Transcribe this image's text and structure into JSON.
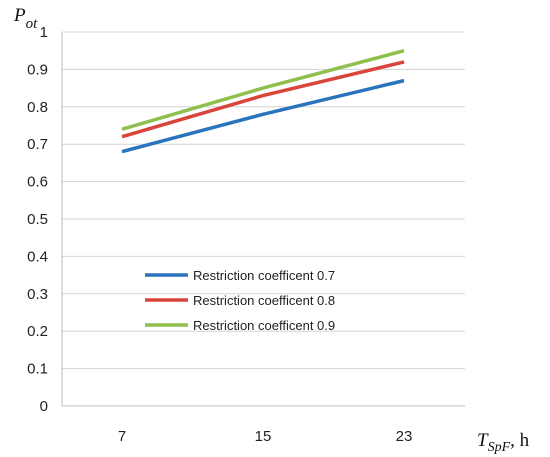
{
  "chart_data": {
    "type": "line",
    "x": [
      7,
      15,
      23
    ],
    "xticks": [
      "7",
      "15",
      "23"
    ],
    "yticks": [
      "0",
      "0.1",
      "0.2",
      "0.3",
      "0.4",
      "0.5",
      "0.6",
      "0.7",
      "0.8",
      "0.9",
      "1"
    ],
    "ylim": [
      0,
      1
    ],
    "ylabel": {
      "main": "P",
      "sub": "ot"
    },
    "xlabel": {
      "main": "T",
      "sub": "SpF",
      "suffix": ", h"
    },
    "grid": true,
    "legend_position": "lower-center",
    "series": [
      {
        "name": "Restriction coefficent 0.7",
        "color": "#2a73bd",
        "values": [
          0.68,
          0.78,
          0.87
        ]
      },
      {
        "name": "Restriction coefficent 0.8",
        "color": "#d9453b",
        "values": [
          0.72,
          0.83,
          0.92
        ]
      },
      {
        "name": "Restriction coefficent 0.9",
        "color": "#8fbf4d",
        "values": [
          0.74,
          0.85,
          0.95
        ]
      }
    ]
  }
}
